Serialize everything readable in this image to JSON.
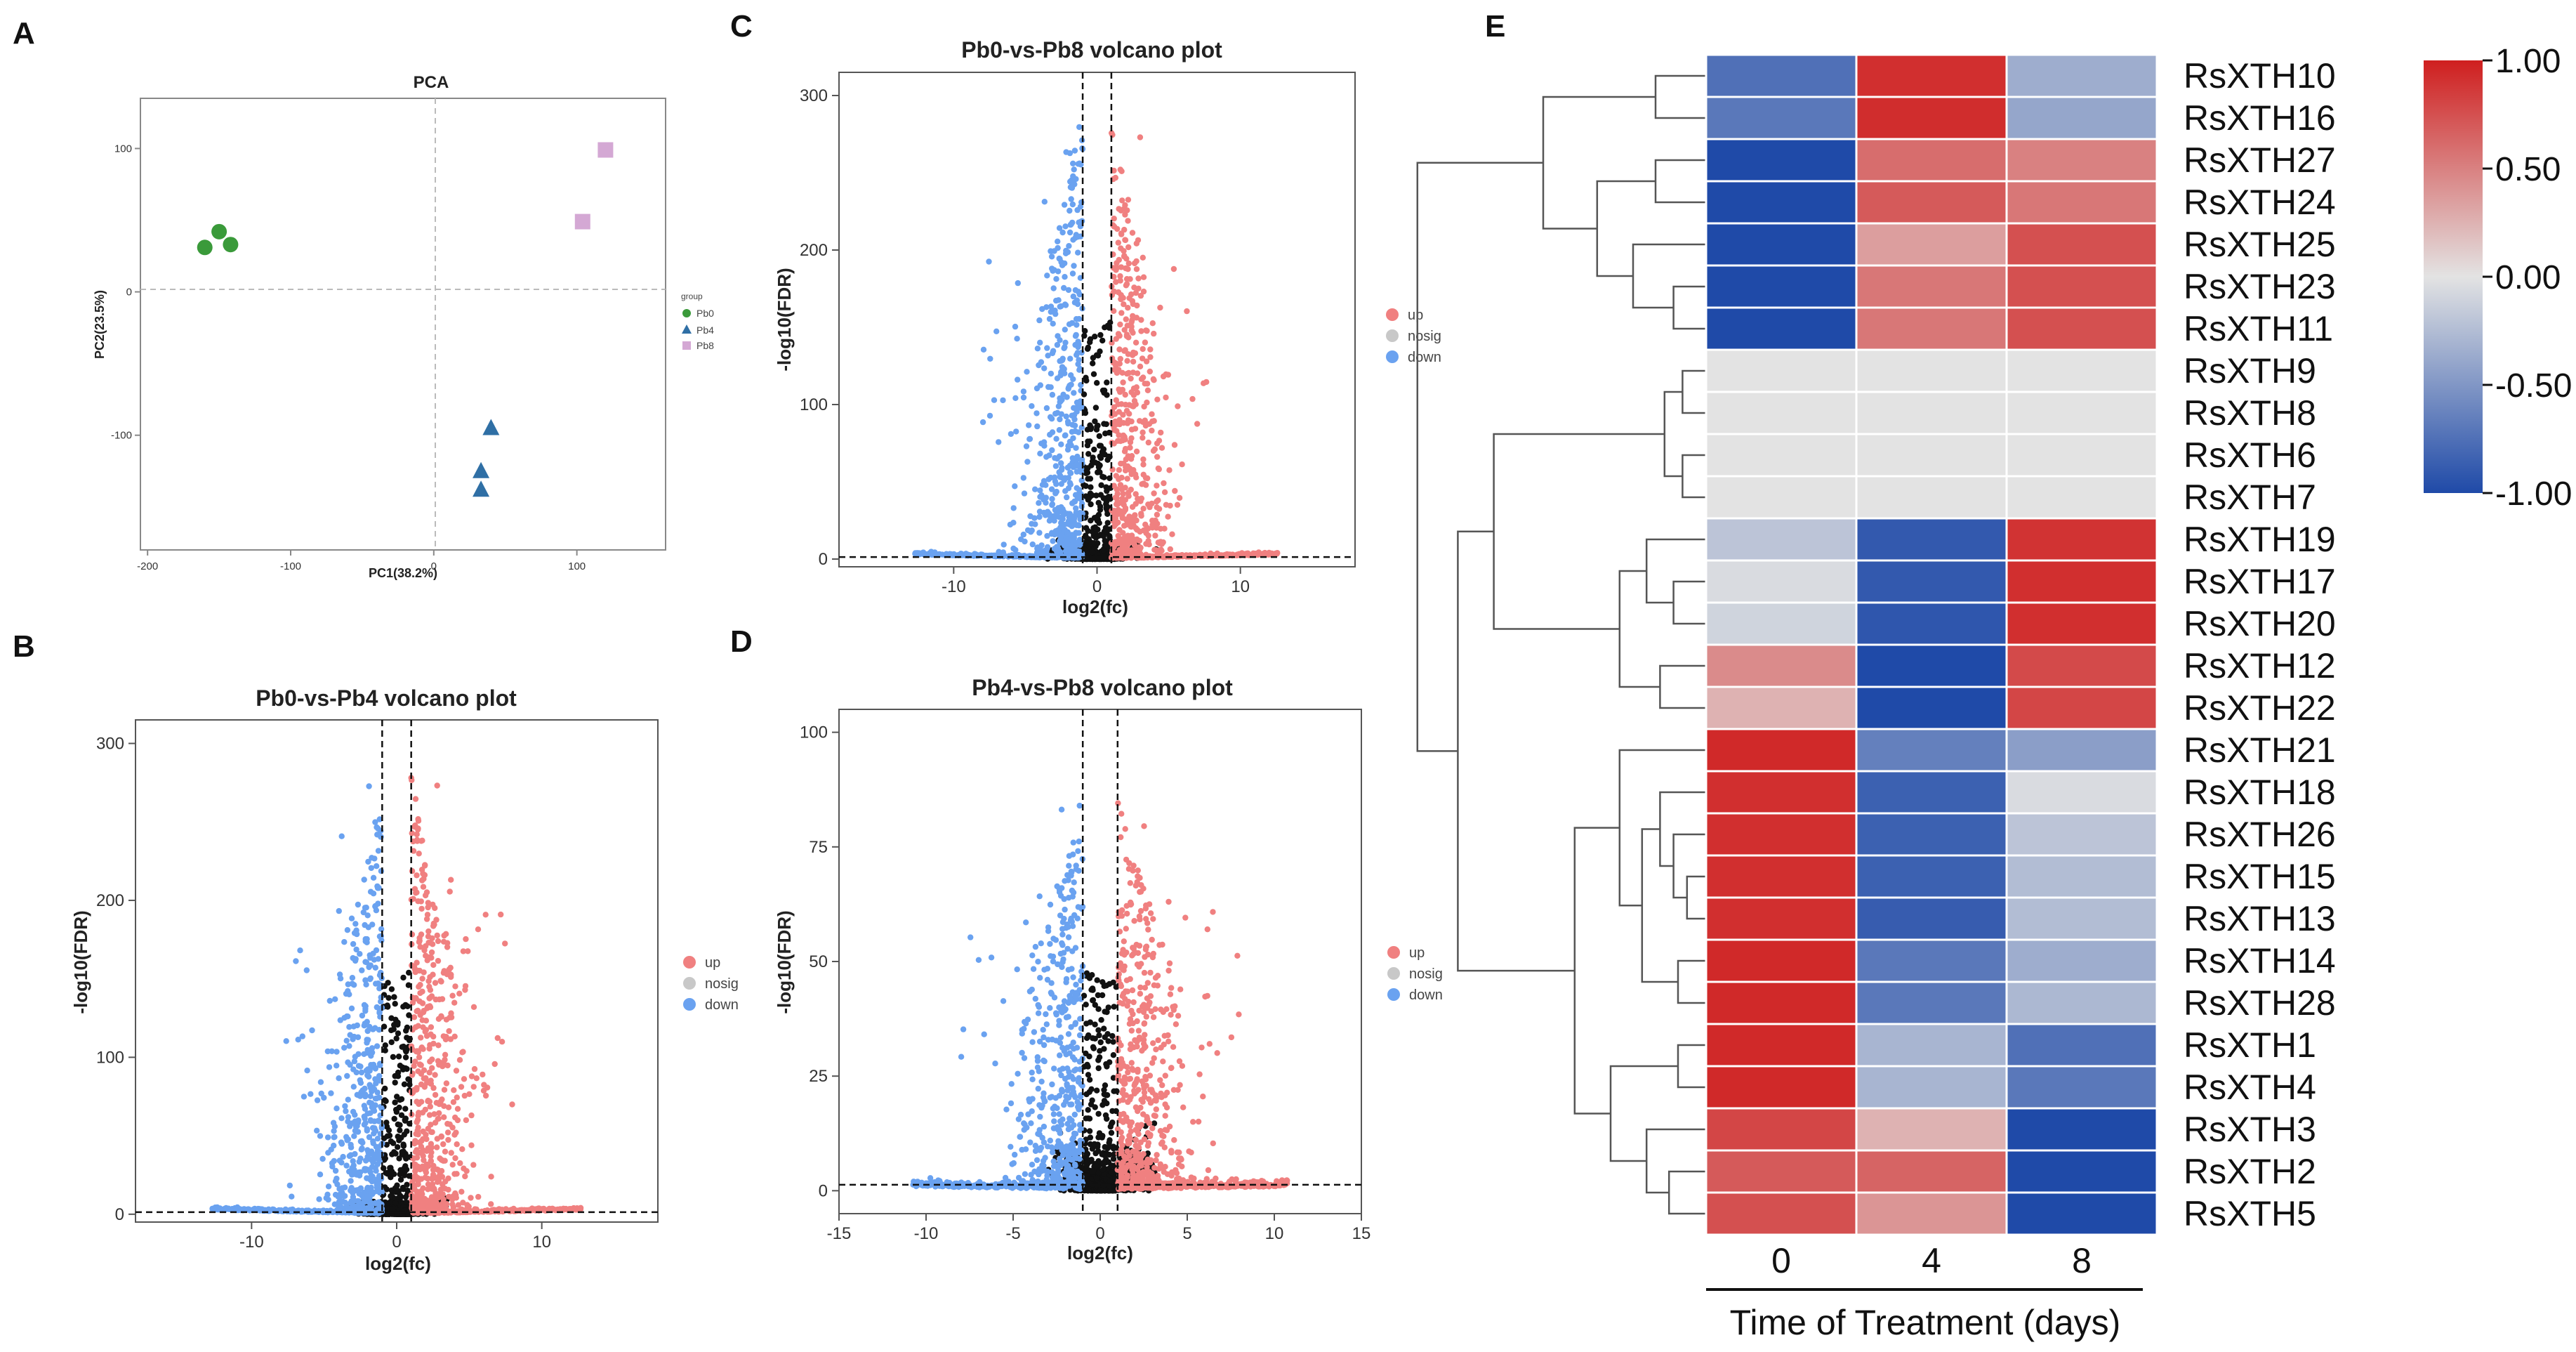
{
  "panels": {
    "A": "A",
    "B": "B",
    "C": "C",
    "D": "D",
    "E": "E"
  },
  "colors": {
    "up": "#f08080",
    "nosig": "#c8c8c8",
    "down": "#6aa2f0",
    "pb0": "#3a9a3a",
    "pb4": "#2f6fa5",
    "pb8": "#d4a8d4",
    "heat_low": "#1f4aa8",
    "heat_mid": "#e3e3e3",
    "heat_high": "#cf1f1f"
  },
  "chart_data": [
    {
      "id": "pca",
      "type": "scatter",
      "title": "PCA",
      "xlabel": "PC1(38.2%)",
      "ylabel": "PC2(23.5%)",
      "xlim": [
        -205,
        162
      ],
      "ylim": [
        -180,
        135
      ],
      "xticks": [
        -200,
        -100,
        0,
        100
      ],
      "yticks": [
        100,
        0,
        -100
      ],
      "legend_title": "group",
      "groups": [
        {
          "name": "Pb0",
          "shape": "circle",
          "points": [
            [
              -160,
              31
            ],
            [
              -150,
              42
            ],
            [
              -142,
              33
            ]
          ]
        },
        {
          "name": "Pb4",
          "shape": "triangle",
          "points": [
            [
              40,
              -95
            ],
            [
              33,
              -125
            ],
            [
              33,
              -138
            ]
          ]
        },
        {
          "name": "Pb8",
          "shape": "square",
          "points": [
            [
              120,
              99
            ],
            [
              104,
              49
            ]
          ]
        }
      ]
    },
    {
      "id": "volcano_b",
      "type": "scatter",
      "title": "Pb0-vs-Pb4 volcano plot",
      "xlabel": "log2(fc)",
      "ylabel": "-log10(FDR)",
      "xlim": [
        -18,
        18
      ],
      "ylim": [
        -5,
        315
      ],
      "xticks": [
        -10,
        0,
        10
      ],
      "yticks": [
        0,
        100,
        200,
        300
      ],
      "vlines": [
        -1,
        1
      ],
      "hline": 1.3,
      "max_y": 280,
      "seed": 7,
      "legend": [
        "up",
        "nosig",
        "down"
      ]
    },
    {
      "id": "volcano_c",
      "type": "scatter",
      "title": "Pb0-vs-Pb8 volcano plot",
      "xlabel": "log2(fc)",
      "ylabel": "-log10(FDR)",
      "xlim": [
        -18,
        18
      ],
      "ylim": [
        -5,
        315
      ],
      "xticks": [
        -10,
        0,
        10
      ],
      "yticks": [
        0,
        100,
        200,
        300
      ],
      "vlines": [
        -1,
        1
      ],
      "hline": 1.3,
      "max_y": 292,
      "seed": 13,
      "legend": [
        "up",
        "nosig",
        "down"
      ]
    },
    {
      "id": "volcano_d",
      "type": "scatter",
      "title": "Pb4-vs-Pb8 volcano plot",
      "xlabel": "log2(fc)",
      "ylabel": "-log10(FDR)",
      "xlim": [
        -15,
        15
      ],
      "ylim": [
        -5,
        105
      ],
      "xticks": [
        -15,
        -10,
        -5,
        0,
        5,
        10,
        15
      ],
      "yticks": [
        0,
        25,
        50,
        75,
        100
      ],
      "vlines": [
        -1,
        1
      ],
      "hline": 1.3,
      "max_y": 87,
      "seed": 29,
      "legend": [
        "up",
        "nosig",
        "down"
      ]
    },
    {
      "id": "heatmap",
      "type": "heatmap",
      "xlabel": "Time of Treatment (days)",
      "columns": [
        "0",
        "4",
        "8"
      ],
      "colorbar_ticks": [
        "1.00",
        "0.50",
        "0.00",
        "-0.50",
        "-1.00"
      ],
      "rows": [
        {
          "gene": "RsXTH10",
          "values": [
            -0.75,
            0.92,
            -0.35
          ]
        },
        {
          "gene": "RsXTH16",
          "values": [
            -0.7,
            0.93,
            -0.4
          ]
        },
        {
          "gene": "RsXTH27",
          "values": [
            -1.0,
            0.6,
            0.5
          ]
        },
        {
          "gene": "RsXTH24",
          "values": [
            -1.0,
            0.7,
            0.55
          ]
        },
        {
          "gene": "RsXTH25",
          "values": [
            -1.0,
            0.35,
            0.75
          ]
        },
        {
          "gene": "RsXTH23",
          "values": [
            -1.0,
            0.55,
            0.75
          ]
        },
        {
          "gene": "RsXTH11",
          "values": [
            -1.0,
            0.55,
            0.75
          ]
        },
        {
          "gene": "RsXTH9",
          "values": [
            0.0,
            0.0,
            0.0
          ]
        },
        {
          "gene": "RsXTH8",
          "values": [
            0.0,
            0.0,
            0.0
          ]
        },
        {
          "gene": "RsXTH6",
          "values": [
            0.0,
            0.0,
            0.0
          ]
        },
        {
          "gene": "RsXTH7",
          "values": [
            0.0,
            0.0,
            0.0
          ]
        },
        {
          "gene": "RsXTH19",
          "values": [
            -0.2,
            -0.9,
            0.9
          ]
        },
        {
          "gene": "RsXTH17",
          "values": [
            -0.05,
            -0.9,
            0.92
          ]
        },
        {
          "gene": "RsXTH20",
          "values": [
            -0.1,
            -0.92,
            0.92
          ]
        },
        {
          "gene": "RsXTH12",
          "values": [
            0.45,
            -1.0,
            0.78
          ]
        },
        {
          "gene": "RsXTH22",
          "values": [
            0.25,
            -1.0,
            0.8
          ]
        },
        {
          "gene": "RsXTH21",
          "values": [
            0.95,
            -0.65,
            -0.45
          ]
        },
        {
          "gene": "RsXTH18",
          "values": [
            0.92,
            -0.85,
            -0.05
          ]
        },
        {
          "gene": "RsXTH26",
          "values": [
            0.92,
            -0.85,
            -0.2
          ]
        },
        {
          "gene": "RsXTH15",
          "values": [
            0.92,
            -0.85,
            -0.25
          ]
        },
        {
          "gene": "RsXTH13",
          "values": [
            0.92,
            -0.88,
            -0.25
          ]
        },
        {
          "gene": "RsXTH14",
          "values": [
            0.95,
            -0.7,
            -0.35
          ]
        },
        {
          "gene": "RsXTH28",
          "values": [
            0.95,
            -0.7,
            -0.28
          ]
        },
        {
          "gene": "RsXTH1",
          "values": [
            0.95,
            -0.3,
            -0.75
          ]
        },
        {
          "gene": "RsXTH4",
          "values": [
            0.95,
            -0.3,
            -0.7
          ]
        },
        {
          "gene": "RsXTH3",
          "values": [
            0.8,
            0.25,
            -1.0
          ]
        },
        {
          "gene": "RsXTH2",
          "values": [
            0.7,
            0.65,
            -1.0
          ]
        },
        {
          "gene": "RsXTH5",
          "values": [
            0.75,
            0.4,
            -1.0
          ]
        }
      ]
    }
  ]
}
